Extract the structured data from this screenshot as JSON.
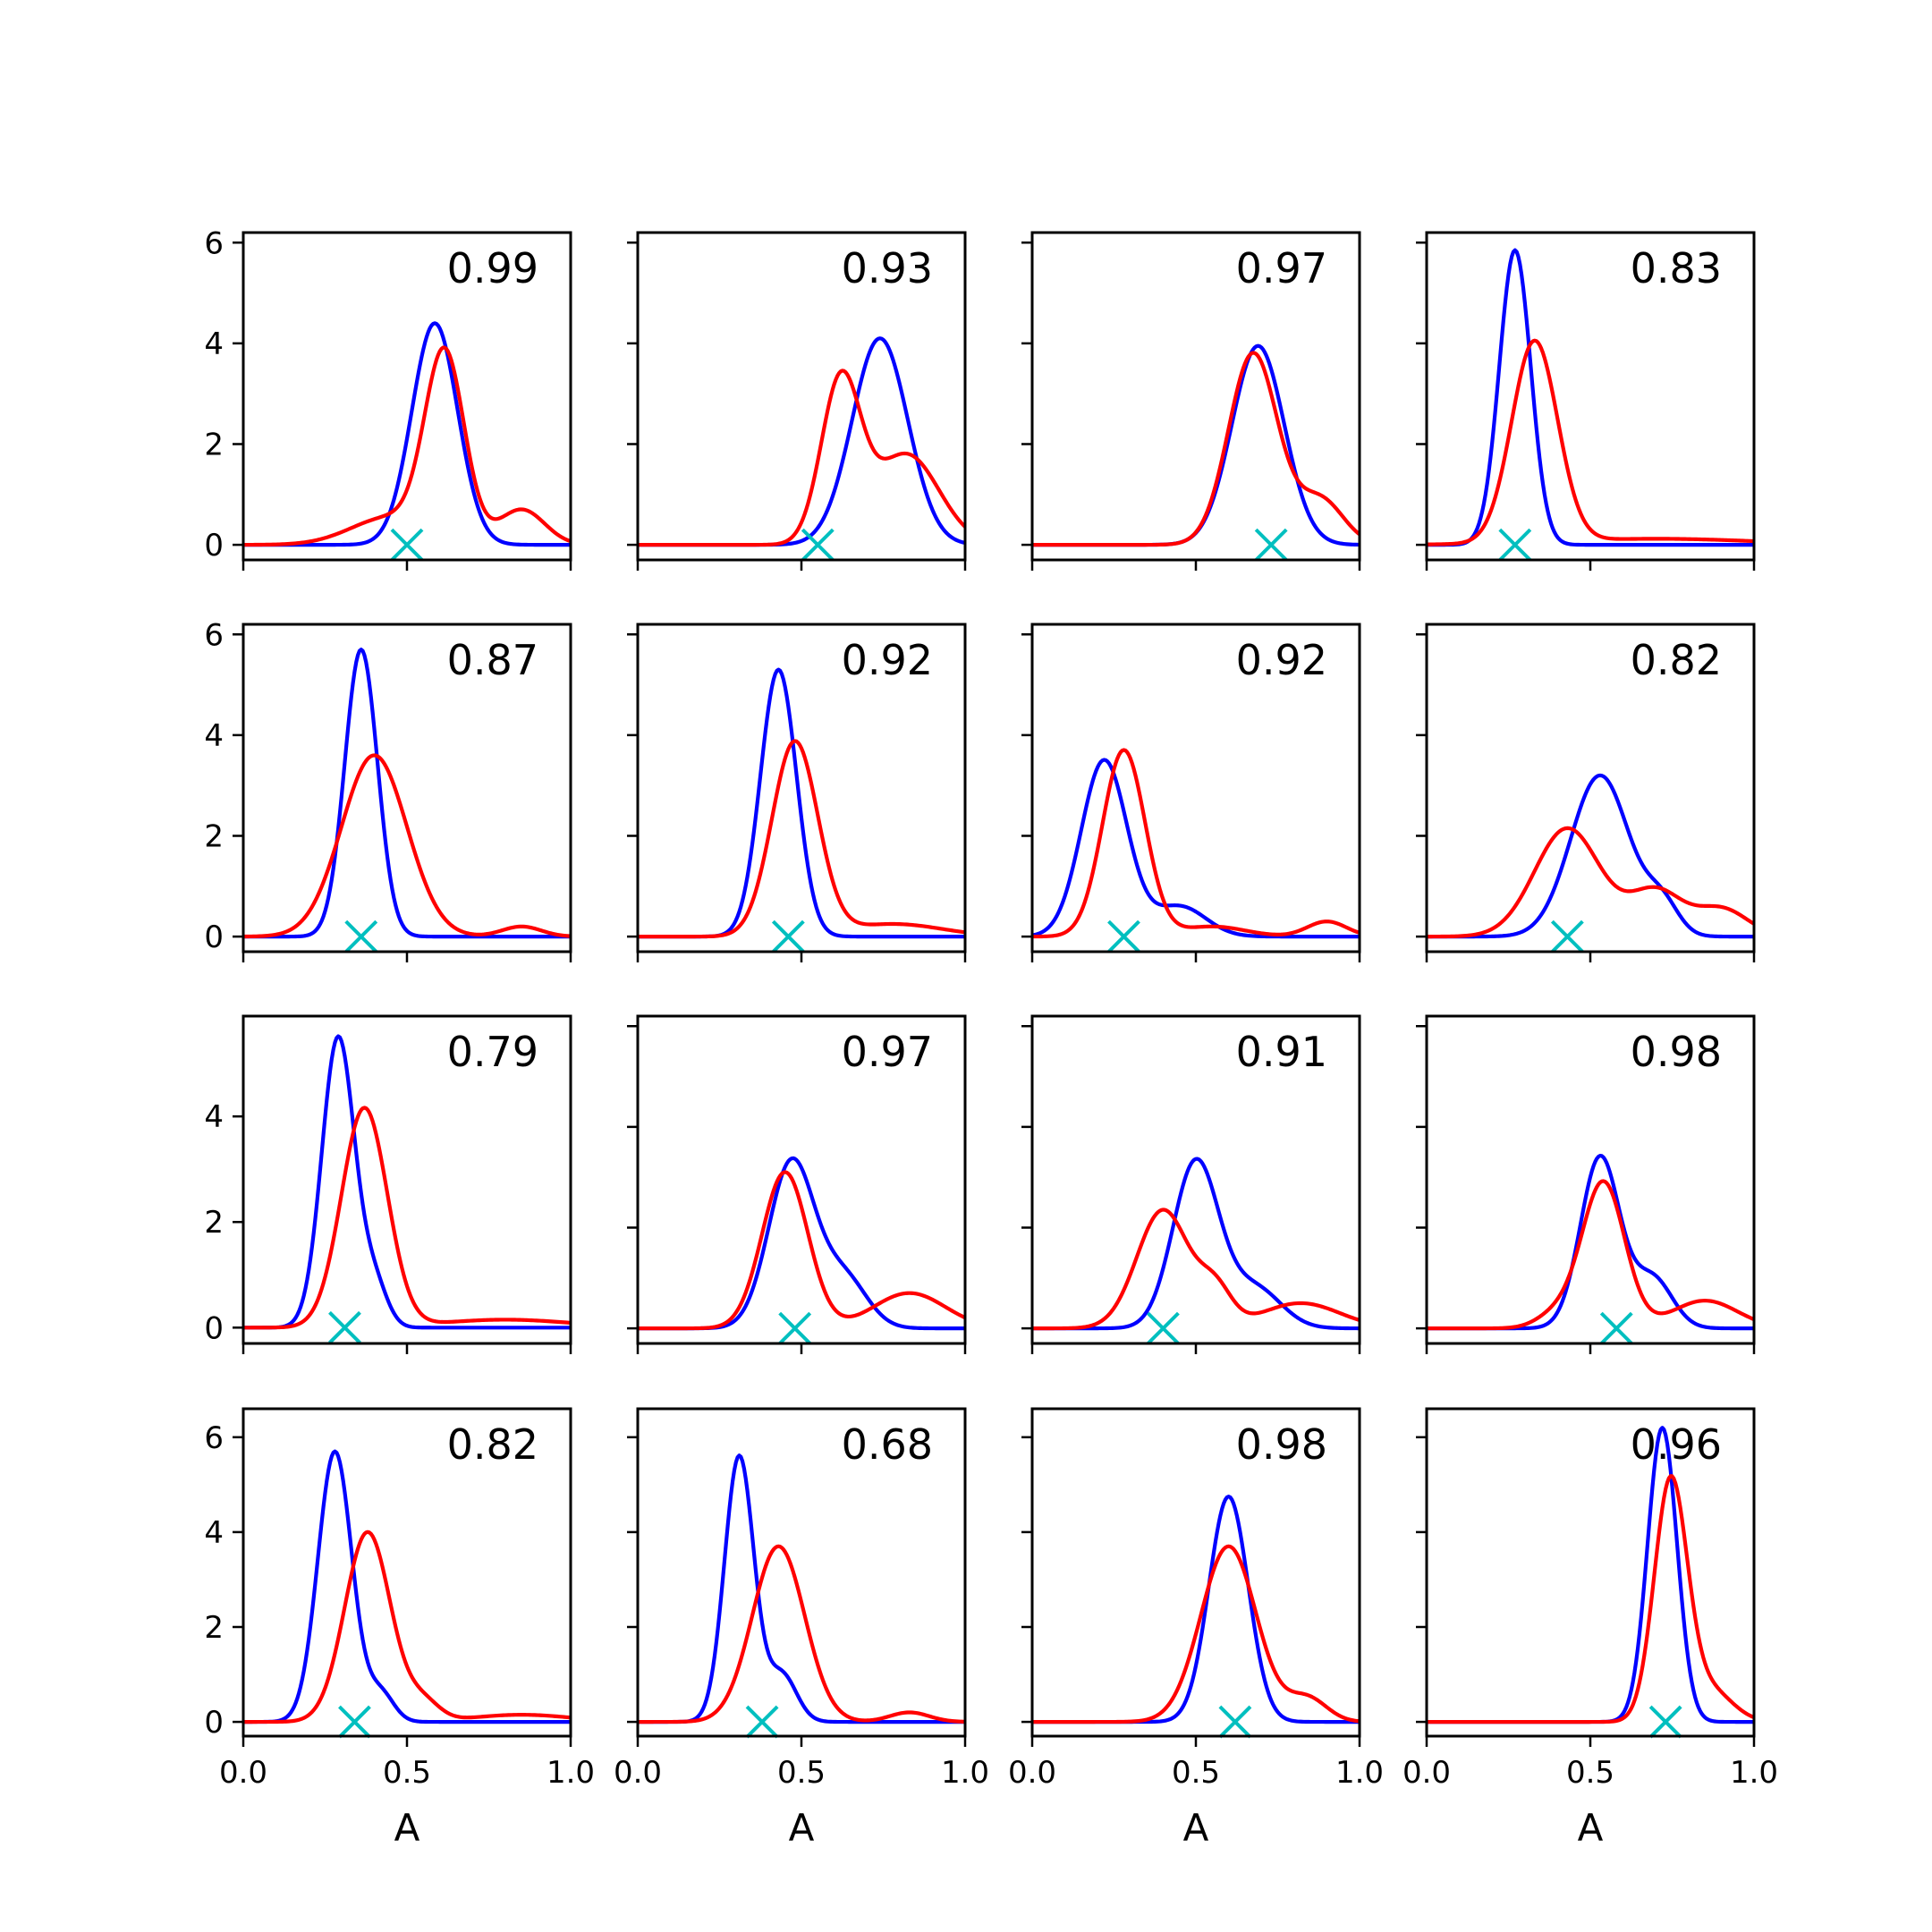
{
  "colors": {
    "blue": "#0000ff",
    "red": "#ff0000",
    "marker": "#00bfbf",
    "axes": "#000000"
  },
  "chart_data": {
    "type": "line",
    "layout": "4x4 grid of density panels",
    "x_tick_labels": [
      "0.0",
      "0.5",
      "1.0"
    ],
    "y_tick_labels_a": [
      "0",
      "2",
      "4",
      "6"
    ],
    "y_tick_labels_b": [
      "0",
      "2",
      "4"
    ],
    "xlabel": "A",
    "xlim": [
      0,
      1
    ],
    "grid": false,
    "panels": [
      {
        "annotation": "0.99",
        "marker_x": 0.5,
        "ylim": [
          -0.3,
          6.2
        ],
        "yticks": [
          0,
          2,
          4,
          6
        ],
        "series": [
          {
            "color": "blue",
            "peaks": [
              {
                "mu": 0.585,
                "s": 0.07,
                "a": 4.4
              }
            ]
          },
          {
            "color": "red",
            "peaks": [
              {
                "mu": 0.615,
                "s": 0.06,
                "a": 3.7
              },
              {
                "mu": 0.45,
                "s": 0.12,
                "a": 0.55
              },
              {
                "mu": 0.85,
                "s": 0.07,
                "a": 0.7
              }
            ]
          }
        ]
      },
      {
        "annotation": "0.93",
        "marker_x": 0.55,
        "ylim": [
          -0.3,
          6.2
        ],
        "yticks": [
          0,
          2,
          4,
          6
        ],
        "series": [
          {
            "color": "blue",
            "peaks": [
              {
                "mu": 0.74,
                "s": 0.085,
                "a": 4.1
              }
            ]
          },
          {
            "color": "red",
            "peaks": [
              {
                "mu": 0.62,
                "s": 0.06,
                "a": 3.2
              },
              {
                "mu": 0.82,
                "s": 0.1,
                "a": 1.8
              }
            ]
          }
        ]
      },
      {
        "annotation": "0.97",
        "marker_x": 0.73,
        "ylim": [
          -0.3,
          6.2
        ],
        "yticks": [
          0,
          2,
          4,
          6
        ],
        "series": [
          {
            "color": "blue",
            "peaks": [
              {
                "mu": 0.69,
                "s": 0.08,
                "a": 3.95
              }
            ]
          },
          {
            "color": "red",
            "peaks": [
              {
                "mu": 0.675,
                "s": 0.075,
                "a": 3.8
              },
              {
                "mu": 0.88,
                "s": 0.07,
                "a": 0.9
              }
            ]
          }
        ]
      },
      {
        "annotation": "0.83",
        "marker_x": 0.27,
        "ylim": [
          -0.3,
          6.2
        ],
        "yticks": [
          0,
          2,
          4,
          6
        ],
        "series": [
          {
            "color": "blue",
            "peaks": [
              {
                "mu": 0.27,
                "s": 0.048,
                "a": 5.85
              }
            ]
          },
          {
            "color": "red",
            "peaks": [
              {
                "mu": 0.33,
                "s": 0.07,
                "a": 4.0
              },
              {
                "mu": 0.7,
                "s": 0.3,
                "a": 0.12
              }
            ]
          }
        ]
      },
      {
        "annotation": "0.87",
        "marker_x": 0.36,
        "ylim": [
          -0.3,
          6.2
        ],
        "yticks": [
          0,
          2,
          4,
          6
        ],
        "series": [
          {
            "color": "blue",
            "peaks": [
              {
                "mu": 0.36,
                "s": 0.05,
                "a": 5.7
              }
            ]
          },
          {
            "color": "red",
            "peaks": [
              {
                "mu": 0.4,
                "s": 0.1,
                "a": 3.6
              },
              {
                "mu": 0.85,
                "s": 0.06,
                "a": 0.2
              }
            ]
          }
        ]
      },
      {
        "annotation": "0.92",
        "marker_x": 0.46,
        "ylim": [
          -0.3,
          6.2
        ],
        "yticks": [
          0,
          2,
          4,
          6
        ],
        "series": [
          {
            "color": "blue",
            "peaks": [
              {
                "mu": 0.43,
                "s": 0.055,
                "a": 5.3
              }
            ]
          },
          {
            "color": "red",
            "peaks": [
              {
                "mu": 0.48,
                "s": 0.07,
                "a": 3.85
              },
              {
                "mu": 0.78,
                "s": 0.15,
                "a": 0.25
              }
            ]
          }
        ]
      },
      {
        "annotation": "0.92",
        "marker_x": 0.28,
        "ylim": [
          -0.3,
          6.2
        ],
        "yticks": [
          0,
          2,
          4,
          6
        ],
        "series": [
          {
            "color": "blue",
            "peaks": [
              {
                "mu": 0.22,
                "s": 0.07,
                "a": 3.5
              },
              {
                "mu": 0.45,
                "s": 0.08,
                "a": 0.6
              }
            ]
          },
          {
            "color": "red",
            "peaks": [
              {
                "mu": 0.28,
                "s": 0.065,
                "a": 3.7
              },
              {
                "mu": 0.9,
                "s": 0.06,
                "a": 0.3
              },
              {
                "mu": 0.55,
                "s": 0.1,
                "a": 0.2
              }
            ]
          }
        ]
      },
      {
        "annotation": "0.82",
        "marker_x": 0.43,
        "ylim": [
          -0.3,
          6.2
        ],
        "yticks": [
          0,
          2,
          4,
          6
        ],
        "series": [
          {
            "color": "blue",
            "peaks": [
              {
                "mu": 0.53,
                "s": 0.09,
                "a": 3.2
              },
              {
                "mu": 0.72,
                "s": 0.05,
                "a": 0.6
              }
            ]
          },
          {
            "color": "red",
            "peaks": [
              {
                "mu": 0.43,
                "s": 0.1,
                "a": 2.15
              },
              {
                "mu": 0.7,
                "s": 0.08,
                "a": 0.9
              },
              {
                "mu": 0.9,
                "s": 0.08,
                "a": 0.55
              }
            ]
          }
        ]
      },
      {
        "annotation": "0.79",
        "marker_x": 0.31,
        "ylim": [
          -0.3,
          5.9
        ],
        "yticks": [
          0,
          2,
          4
        ],
        "series": [
          {
            "color": "blue",
            "peaks": [
              {
                "mu": 0.29,
                "s": 0.05,
                "a": 5.5
              },
              {
                "mu": 0.4,
                "s": 0.04,
                "a": 0.8
              }
            ]
          },
          {
            "color": "red",
            "peaks": [
              {
                "mu": 0.37,
                "s": 0.07,
                "a": 4.15
              },
              {
                "mu": 0.8,
                "s": 0.2,
                "a": 0.15
              }
            ]
          }
        ]
      },
      {
        "annotation": "0.97",
        "marker_x": 0.48,
        "ylim": [
          -0.3,
          6.2
        ],
        "yticks": [
          0,
          2,
          4,
          6
        ],
        "series": [
          {
            "color": "blue",
            "peaks": [
              {
                "mu": 0.47,
                "s": 0.07,
                "a": 3.3
              },
              {
                "mu": 0.63,
                "s": 0.07,
                "a": 1.0
              }
            ]
          },
          {
            "color": "red",
            "peaks": [
              {
                "mu": 0.45,
                "s": 0.07,
                "a": 3.1
              },
              {
                "mu": 0.83,
                "s": 0.11,
                "a": 0.7
              }
            ]
          }
        ]
      },
      {
        "annotation": "0.91",
        "marker_x": 0.4,
        "ylim": [
          -0.3,
          6.2
        ],
        "yticks": [
          0,
          2,
          4,
          6
        ],
        "series": [
          {
            "color": "blue",
            "peaks": [
              {
                "mu": 0.5,
                "s": 0.07,
                "a": 3.3
              },
              {
                "mu": 0.68,
                "s": 0.08,
                "a": 0.8
              }
            ]
          },
          {
            "color": "red",
            "peaks": [
              {
                "mu": 0.4,
                "s": 0.08,
                "a": 2.35
              },
              {
                "mu": 0.56,
                "s": 0.05,
                "a": 0.7
              },
              {
                "mu": 0.82,
                "s": 0.12,
                "a": 0.5
              }
            ]
          }
        ]
      },
      {
        "annotation": "0.98",
        "marker_x": 0.58,
        "ylim": [
          -0.3,
          6.2
        ],
        "yticks": [
          0,
          2,
          4,
          6
        ],
        "series": [
          {
            "color": "blue",
            "peaks": [
              {
                "mu": 0.53,
                "s": 0.06,
                "a": 3.4
              },
              {
                "mu": 0.69,
                "s": 0.06,
                "a": 1.0
              }
            ]
          },
          {
            "color": "red",
            "peaks": [
              {
                "mu": 0.54,
                "s": 0.065,
                "a": 2.9
              },
              {
                "mu": 0.85,
                "s": 0.1,
                "a": 0.55
              },
              {
                "mu": 0.4,
                "s": 0.06,
                "a": 0.3
              }
            ]
          }
        ]
      },
      {
        "annotation": "0.82",
        "marker_x": 0.34,
        "ylim": [
          -0.3,
          6.6
        ],
        "yticks": [
          0,
          2,
          4,
          6
        ],
        "series": [
          {
            "color": "blue",
            "peaks": [
              {
                "mu": 0.28,
                "s": 0.052,
                "a": 5.7
              },
              {
                "mu": 0.42,
                "s": 0.04,
                "a": 0.6
              }
            ]
          },
          {
            "color": "red",
            "peaks": [
              {
                "mu": 0.38,
                "s": 0.07,
                "a": 4.0
              },
              {
                "mu": 0.85,
                "s": 0.15,
                "a": 0.15
              },
              {
                "mu": 0.55,
                "s": 0.05,
                "a": 0.4
              }
            ]
          }
        ]
      },
      {
        "annotation": "0.68",
        "marker_x": 0.38,
        "ylim": [
          -0.3,
          6.6
        ],
        "yticks": [
          0,
          2,
          4,
          6
        ],
        "series": [
          {
            "color": "blue",
            "peaks": [
              {
                "mu": 0.31,
                "s": 0.045,
                "a": 5.6
              },
              {
                "mu": 0.44,
                "s": 0.045,
                "a": 1.0
              }
            ]
          },
          {
            "color": "red",
            "peaks": [
              {
                "mu": 0.43,
                "s": 0.08,
                "a": 3.7
              },
              {
                "mu": 0.83,
                "s": 0.06,
                "a": 0.2
              }
            ]
          }
        ]
      },
      {
        "annotation": "0.98",
        "marker_x": 0.62,
        "ylim": [
          -0.3,
          6.6
        ],
        "yticks": [
          0,
          2,
          4,
          6
        ],
        "series": [
          {
            "color": "blue",
            "peaks": [
              {
                "mu": 0.6,
                "s": 0.06,
                "a": 4.75
              }
            ]
          },
          {
            "color": "red",
            "peaks": [
              {
                "mu": 0.6,
                "s": 0.085,
                "a": 3.7
              },
              {
                "mu": 0.84,
                "s": 0.06,
                "a": 0.5
              }
            ]
          }
        ]
      },
      {
        "annotation": "0.96",
        "marker_x": 0.73,
        "ylim": [
          -0.3,
          6.6
        ],
        "yticks": [
          0,
          2,
          4,
          6
        ],
        "series": [
          {
            "color": "blue",
            "peaks": [
              {
                "mu": 0.72,
                "s": 0.045,
                "a": 6.2
              }
            ]
          },
          {
            "color": "red",
            "peaks": [
              {
                "mu": 0.745,
                "s": 0.05,
                "a": 5.0
              },
              {
                "mu": 0.86,
                "s": 0.07,
                "a": 0.7
              }
            ]
          }
        ]
      }
    ]
  }
}
